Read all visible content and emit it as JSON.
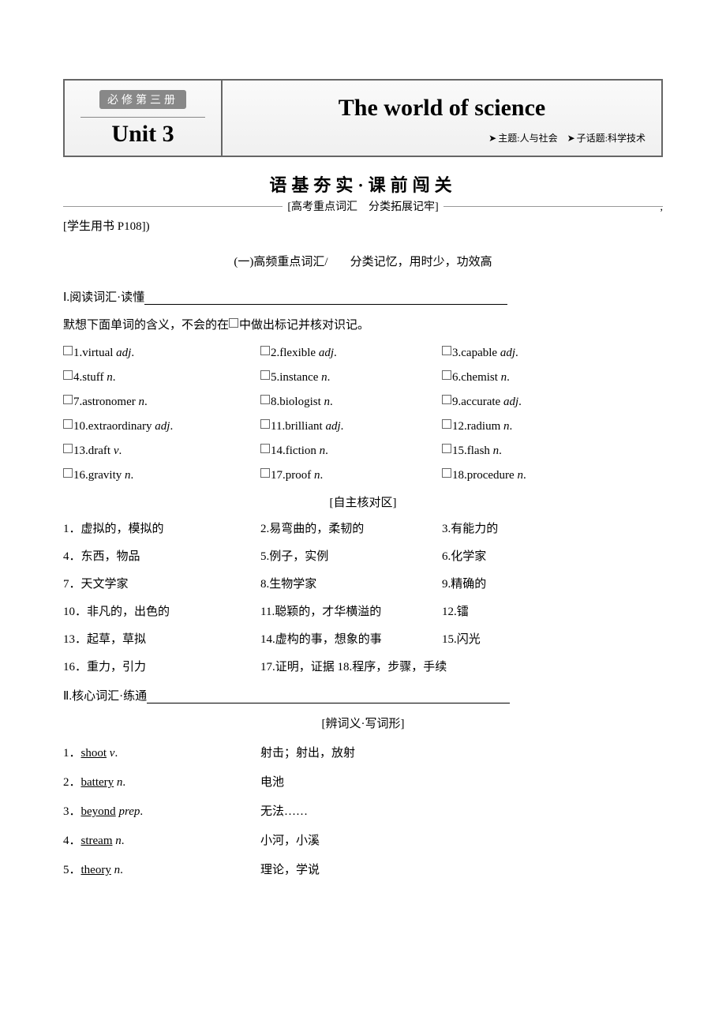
{
  "header": {
    "book_label": "必修第三册",
    "unit": "Unit 3",
    "title": "The world of science",
    "topic1_label": "主题:",
    "topic1_value": "人与社会",
    "topic2_label": "子话题:",
    "topic2_value": "科学技术"
  },
  "section_header": "语基夯实·课前闯关",
  "sub_header": "[高考重点词汇　分类拓展记牢]",
  "page_ref": "[学生用书 P108])",
  "freq_title_a": "(一)高频重点词汇/",
  "freq_title_b": "分类记忆，用时少，功效高",
  "reading_label": "Ⅰ.阅读词汇·读懂",
  "instruction_a": "默想下面单词的含义，不会的在",
  "instruction_b": "中做出标记并核对识记。",
  "vocab": [
    {
      "n": "1",
      "w": "virtual",
      "p": "adj"
    },
    {
      "n": "2",
      "w": "flexible",
      "p": "adj"
    },
    {
      "n": "3",
      "w": "capable",
      "p": "adj"
    },
    {
      "n": "4",
      "w": "stuff",
      "p": "n"
    },
    {
      "n": "5",
      "w": "instance",
      "p": "n"
    },
    {
      "n": "6",
      "w": "chemist",
      "p": "n"
    },
    {
      "n": "7",
      "w": "astronomer",
      "p": "n"
    },
    {
      "n": "8",
      "w": "biologist",
      "p": "n"
    },
    {
      "n": "9",
      "w": "accurate",
      "p": "adj"
    },
    {
      "n": "10",
      "w": "extraordinary",
      "p": "adj"
    },
    {
      "n": "11",
      "w": "brilliant",
      "p": "adj"
    },
    {
      "n": "12",
      "w": "radium",
      "p": "n"
    },
    {
      "n": "13",
      "w": "draft",
      "p": "v"
    },
    {
      "n": "14",
      "w": "fiction",
      "p": "n"
    },
    {
      "n": "15",
      "w": "flash",
      "p": "n"
    },
    {
      "n": "16",
      "w": "gravity",
      "p": "n"
    },
    {
      "n": "17",
      "w": "proof",
      "p": "n"
    },
    {
      "n": "18",
      "w": "procedure",
      "p": "n"
    }
  ],
  "check_header": "[自主核对区]",
  "answers": [
    {
      "n": "1．",
      "t": "虚拟的，模拟的"
    },
    {
      "n": "2.",
      "t": "易弯曲的，柔韧的"
    },
    {
      "n": "3.",
      "t": "有能力的"
    },
    {
      "n": "4．",
      "t": "东西，物品"
    },
    {
      "n": "5.",
      "t": "例子，实例"
    },
    {
      "n": "6.",
      "t": "化学家"
    },
    {
      "n": "7．",
      "t": "天文学家"
    },
    {
      "n": "8.",
      "t": "生物学家"
    },
    {
      "n": "9.",
      "t": "精确的"
    },
    {
      "n": "10．",
      "t": "非凡的，出色的"
    },
    {
      "n": "11.",
      "t": "聪颖的，才华横溢的"
    },
    {
      "n": "12.",
      "t": "镭"
    },
    {
      "n": "13．",
      "t": "起草，草拟"
    },
    {
      "n": "14.",
      "t": "虚构的事，想象的事"
    },
    {
      "n": "15.",
      "t": "闪光"
    }
  ],
  "answers_last": {
    "a": "16．重力，引力",
    "b": "17.证明，证据 18.程序，步骤，手续"
  },
  "core_label": "Ⅱ.核心词汇·练通",
  "discern_header": "[辨词义·写词形]",
  "words": [
    {
      "n": "1．",
      "w": "shoot",
      "p": "v",
      "m": "射击；射出，放射"
    },
    {
      "n": "2．",
      "w": "battery",
      "p": "n",
      "m": "电池"
    },
    {
      "n": "3．",
      "w": "beyond",
      "p": "prep",
      "m": "无法……"
    },
    {
      "n": "4．",
      "w": "stream",
      "p": "n",
      "m": "小河，小溪"
    },
    {
      "n": "5．",
      "w": "theory",
      "p": "n",
      "m": "理论，学说"
    }
  ]
}
